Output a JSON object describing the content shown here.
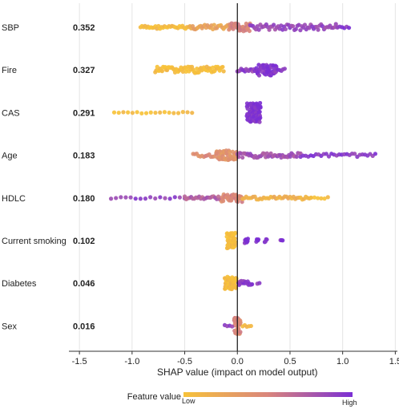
{
  "chart_data": {
    "type": "scatter",
    "subtype": "shap-beeswarm",
    "xlabel": "SHAP value (impact on model output)",
    "xlim": [
      -1.6,
      1.52
    ],
    "xticks": [
      -1.5,
      -1.0,
      -0.5,
      0.0,
      0.5,
      1.0,
      1.5
    ],
    "xtick_labels": [
      "-1.5",
      "-1.0",
      "-0.5",
      "0.0",
      "0.5",
      "1.0",
      "1.5"
    ],
    "grid": true,
    "colors": {
      "low": "#f7c23a",
      "mid": "#d9857c",
      "high": "#7b2fd4"
    },
    "legend": {
      "title": "Feature value",
      "low_label": "Low",
      "high_label": "High",
      "placement": "bottom"
    },
    "features": [
      {
        "name": "SBP",
        "importance": "0.352",
        "clusters": [
          {
            "from": -0.92,
            "to": -0.45,
            "n": 34,
            "f": 0.05,
            "w": 2
          },
          {
            "from": -0.45,
            "to": -0.08,
            "n": 30,
            "f": 0.25,
            "w": 3
          },
          {
            "from": -0.08,
            "to": 0.12,
            "n": 40,
            "f": 0.5,
            "w": 5
          },
          {
            "from": 0.12,
            "to": 0.95,
            "n": 60,
            "f": 0.85,
            "w": 4
          },
          {
            "from": 0.95,
            "to": 1.06,
            "n": 6,
            "f": 0.95,
            "w": 1
          }
        ]
      },
      {
        "name": "Fire",
        "importance": "0.327",
        "clusters": [
          {
            "from": -0.78,
            "to": -0.13,
            "n": 70,
            "f": 0.03,
            "w": 4
          },
          {
            "from": 0.0,
            "to": 0.18,
            "n": 16,
            "f": 0.9,
            "w": 2
          },
          {
            "from": 0.18,
            "to": 0.37,
            "n": 50,
            "f": 0.97,
            "w": 7
          },
          {
            "from": 0.37,
            "to": 0.45,
            "n": 6,
            "f": 0.95,
            "w": 2
          }
        ]
      },
      {
        "name": "CAS",
        "importance": "0.291",
        "clusters": [
          {
            "from": -1.17,
            "to": -0.43,
            "n": 18,
            "f": 0.02,
            "w": 1
          },
          {
            "from": 0.09,
            "to": 0.22,
            "n": 90,
            "f": 0.98,
            "w": 12
          }
        ]
      },
      {
        "name": "Age",
        "importance": "0.183",
        "clusters": [
          {
            "from": -0.42,
            "to": -0.2,
            "n": 14,
            "f": 0.45,
            "w": 2
          },
          {
            "from": -0.2,
            "to": 0.0,
            "n": 50,
            "f": 0.38,
            "w": 6
          },
          {
            "from": 0.0,
            "to": 0.6,
            "n": 50,
            "f": 0.8,
            "w": 3
          },
          {
            "from": 0.6,
            "to": 1.31,
            "n": 30,
            "f": 0.92,
            "w": 2
          }
        ]
      },
      {
        "name": "HDLC",
        "importance": "0.180",
        "clusters": [
          {
            "from": -1.2,
            "to": -0.5,
            "n": 16,
            "f": 0.88,
            "w": 1
          },
          {
            "from": -0.5,
            "to": -0.15,
            "n": 24,
            "f": 0.72,
            "w": 2
          },
          {
            "from": -0.15,
            "to": 0.05,
            "n": 40,
            "f": 0.48,
            "w": 5
          },
          {
            "from": 0.05,
            "to": 0.7,
            "n": 40,
            "f": 0.15,
            "w": 2
          },
          {
            "from": 0.7,
            "to": 0.86,
            "n": 6,
            "f": 0.05,
            "w": 1
          }
        ]
      },
      {
        "name": "Current smoking",
        "importance": "0.102",
        "clusters": [
          {
            "from": -0.1,
            "to": -0.02,
            "n": 60,
            "f": 0.03,
            "w": 10
          },
          {
            "from": 0.07,
            "to": 0.1,
            "n": 10,
            "f": 0.97,
            "w": 3
          },
          {
            "from": 0.18,
            "to": 0.2,
            "n": 5,
            "f": 0.97,
            "w": 2
          },
          {
            "from": 0.26,
            "to": 0.28,
            "n": 4,
            "f": 0.97,
            "w": 2
          },
          {
            "from": 0.41,
            "to": 0.43,
            "n": 3,
            "f": 0.97,
            "w": 1
          }
        ]
      },
      {
        "name": "Diabetes",
        "importance": "0.046",
        "clusters": [
          {
            "from": -0.12,
            "to": -0.01,
            "n": 60,
            "f": 0.05,
            "w": 8
          },
          {
            "from": 0.01,
            "to": 0.14,
            "n": 20,
            "f": 0.92,
            "w": 3
          },
          {
            "from": 0.19,
            "to": 0.21,
            "n": 2,
            "f": 0.92,
            "w": 1
          }
        ]
      },
      {
        "name": "Sex",
        "importance": "0.016",
        "clusters": [
          {
            "from": -0.03,
            "to": 0.03,
            "n": 40,
            "f": 0.5,
            "w": 10
          },
          {
            "from": -0.12,
            "to": -0.05,
            "n": 4,
            "f": 0.9,
            "w": 1
          },
          {
            "from": 0.05,
            "to": 0.13,
            "n": 5,
            "f": 0.1,
            "w": 1
          }
        ]
      }
    ]
  }
}
